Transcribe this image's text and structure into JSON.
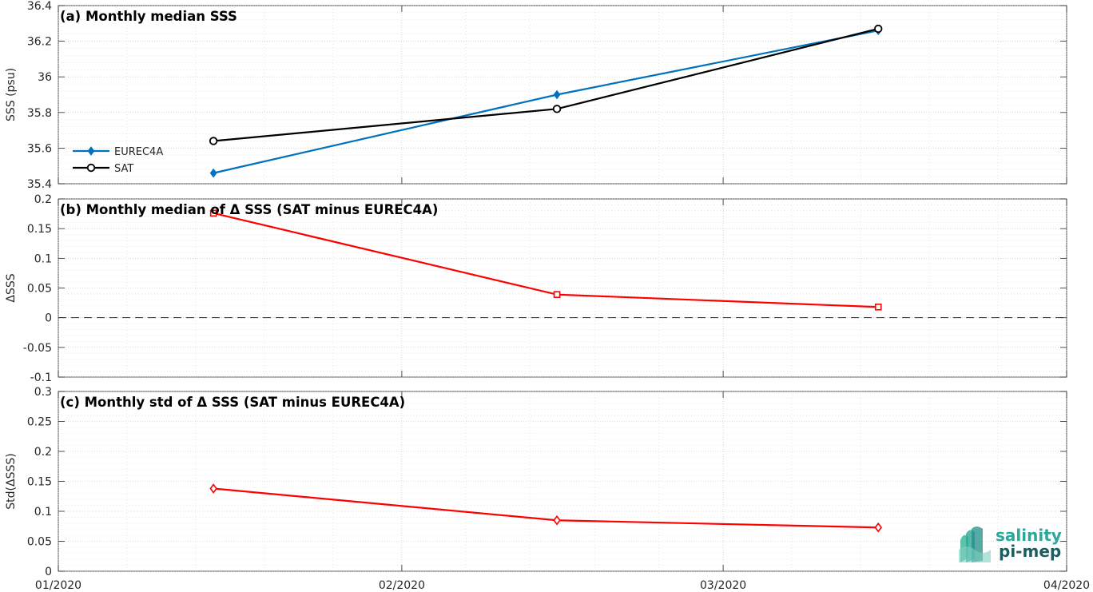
{
  "chart_data": [
    {
      "type": "line",
      "title": "(a) Monthly median SSS",
      "ylabel": "SSS (psu)",
      "ylim": [
        35.4,
        36.4
      ],
      "yticks": [
        "35.4",
        "35.6",
        "35.8",
        "36",
        "36.2",
        "36.4"
      ],
      "x": [
        "2020-01-15",
        "2020-02-15",
        "2020-03-15"
      ],
      "series": [
        {
          "name": "EUREC4A",
          "values": [
            35.46,
            35.9,
            36.26
          ],
          "color": "#0072BD",
          "marker": "diamond"
        },
        {
          "name": "SAT",
          "values": [
            35.64,
            35.82,
            36.27
          ],
          "color": "#000000",
          "marker": "circle"
        }
      ],
      "legend": "left",
      "grid": true
    },
    {
      "type": "line",
      "title": "(b) Monthly median of Δ SSS (SAT minus EUREC4A)",
      "ylabel": "ΔSSS",
      "ylim": [
        -0.1,
        0.2
      ],
      "yticks": [
        "-0.1",
        "-0.05",
        "0",
        "0.05",
        "0.1",
        "0.15",
        "0.2"
      ],
      "x": [
        "2020-01-15",
        "2020-02-15",
        "2020-03-15"
      ],
      "series": [
        {
          "values": [
            0.176,
            0.039,
            0.018
          ],
          "color": "#FF0000",
          "marker": "square"
        }
      ],
      "reference_line": 0,
      "grid": true
    },
    {
      "type": "line",
      "title": "(c) Monthly std of Δ SSS (SAT minus EUREC4A)",
      "ylabel": "Std(ΔSSS)",
      "ylim": [
        0,
        0.3
      ],
      "yticks": [
        "0",
        "0.05",
        "0.1",
        "0.15",
        "0.2",
        "0.25",
        "0.3"
      ],
      "x": [
        "2020-01-15",
        "2020-02-15",
        "2020-03-15"
      ],
      "series": [
        {
          "values": [
            0.138,
            0.085,
            0.073
          ],
          "color": "#FF0000",
          "marker": "diamond"
        }
      ],
      "grid": true
    }
  ],
  "xaxis": {
    "range": [
      "2020-01-01",
      "2020-04-01"
    ],
    "ticks": [
      "2020-01-01",
      "2020-02-01",
      "2020-03-01",
      "2020-04-01"
    ],
    "tick_labels": [
      "01/2020",
      "02/2020",
      "03/2020",
      "04/2020"
    ]
  },
  "logo": {
    "line1": "salinity",
    "line2": "pi-mep",
    "color1": "#2aa89a",
    "color2": "#1f5c60"
  }
}
